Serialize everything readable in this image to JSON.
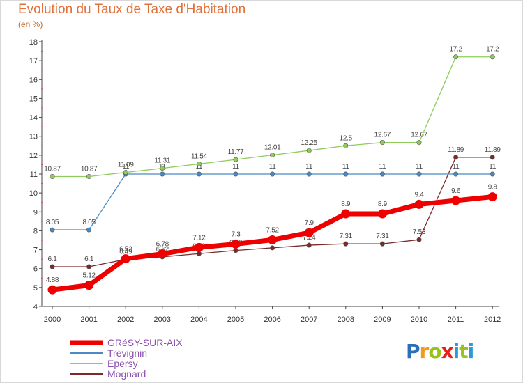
{
  "header": {
    "title": "Evolution du Taux de Taxe d'Habitation",
    "unit": "(en %)"
  },
  "logo": {
    "text": "Proxiti"
  },
  "chart_data": {
    "type": "line",
    "categories": [
      "2000",
      "2001",
      "2002",
      "2003",
      "2004",
      "2005",
      "2006",
      "2007",
      "2008",
      "2009",
      "2010",
      "2011",
      "2012"
    ],
    "ylim": [
      4,
      18
    ],
    "yticks": [
      4,
      5,
      6,
      7,
      8,
      9,
      10,
      11,
      12,
      13,
      14,
      15,
      16,
      17,
      18
    ],
    "grid": false,
    "legend_position": "bottom-left",
    "series": [
      {
        "name": "Mognard",
        "color": "#7a2a2a",
        "values": [
          6.1,
          6.1,
          6.49,
          6.62,
          6.79,
          6.96,
          7.1,
          7.24,
          7.31,
          7.31,
          7.53,
          11.89,
          11.89
        ],
        "labels": [
          "6.1",
          "6.1",
          "6.49",
          "6.62",
          "6.79",
          "6.96",
          "7.1",
          "7.24",
          "7.31",
          "7.31",
          "7.53",
          "11.89",
          "11.89"
        ]
      },
      {
        "name": "Trévignin",
        "color": "#4a8ac4",
        "values": [
          8.05,
          8.05,
          11,
          11,
          11,
          11,
          11,
          11,
          11,
          11,
          11,
          11,
          11
        ],
        "labels": [
          "8.05",
          "8.05",
          "11",
          "11",
          "11",
          "11",
          "11",
          "11",
          "11",
          "11",
          "11",
          "11",
          "11"
        ]
      },
      {
        "name": "Epersy",
        "color": "#8fcc5a",
        "values": [
          10.87,
          10.87,
          11.09,
          11.31,
          11.54,
          11.77,
          12.01,
          12.25,
          12.5,
          12.67,
          12.67,
          17.2,
          17.2
        ],
        "labels": [
          "10.87",
          "10.87",
          "11.09",
          "11.31",
          "11.54",
          "11.77",
          "12.01",
          "12.25",
          "12.5",
          "12.67",
          "12.67",
          "17.2",
          "17.2"
        ]
      },
      {
        "name": "GRéSY-SUR-AIX",
        "color": "#ee0000",
        "values": [
          4.88,
          5.12,
          6.52,
          6.78,
          7.12,
          7.3,
          7.52,
          7.9,
          8.9,
          8.9,
          9.4,
          9.6,
          9.8
        ],
        "labels": [
          "4.88",
          "5.12",
          "6.52",
          "6.78",
          "7.12",
          "7.3",
          "7.52",
          "7.9",
          "8.9",
          "8.9",
          "9.4",
          "9.6",
          "9.8"
        ]
      }
    ],
    "legend": [
      {
        "name": "GRéSY-SUR-AIX",
        "color": "#ee0000",
        "label_color": "#8a4fb0"
      },
      {
        "name": "Trévignin",
        "color": "#4a8ac4",
        "label_color": "#8a4fb0"
      },
      {
        "name": "Epersy",
        "color": "#8fcc5a",
        "label_color": "#8a4fb0"
      },
      {
        "name": "Mognard",
        "color": "#7a2a2a",
        "label_color": "#8a4fb0"
      }
    ]
  }
}
